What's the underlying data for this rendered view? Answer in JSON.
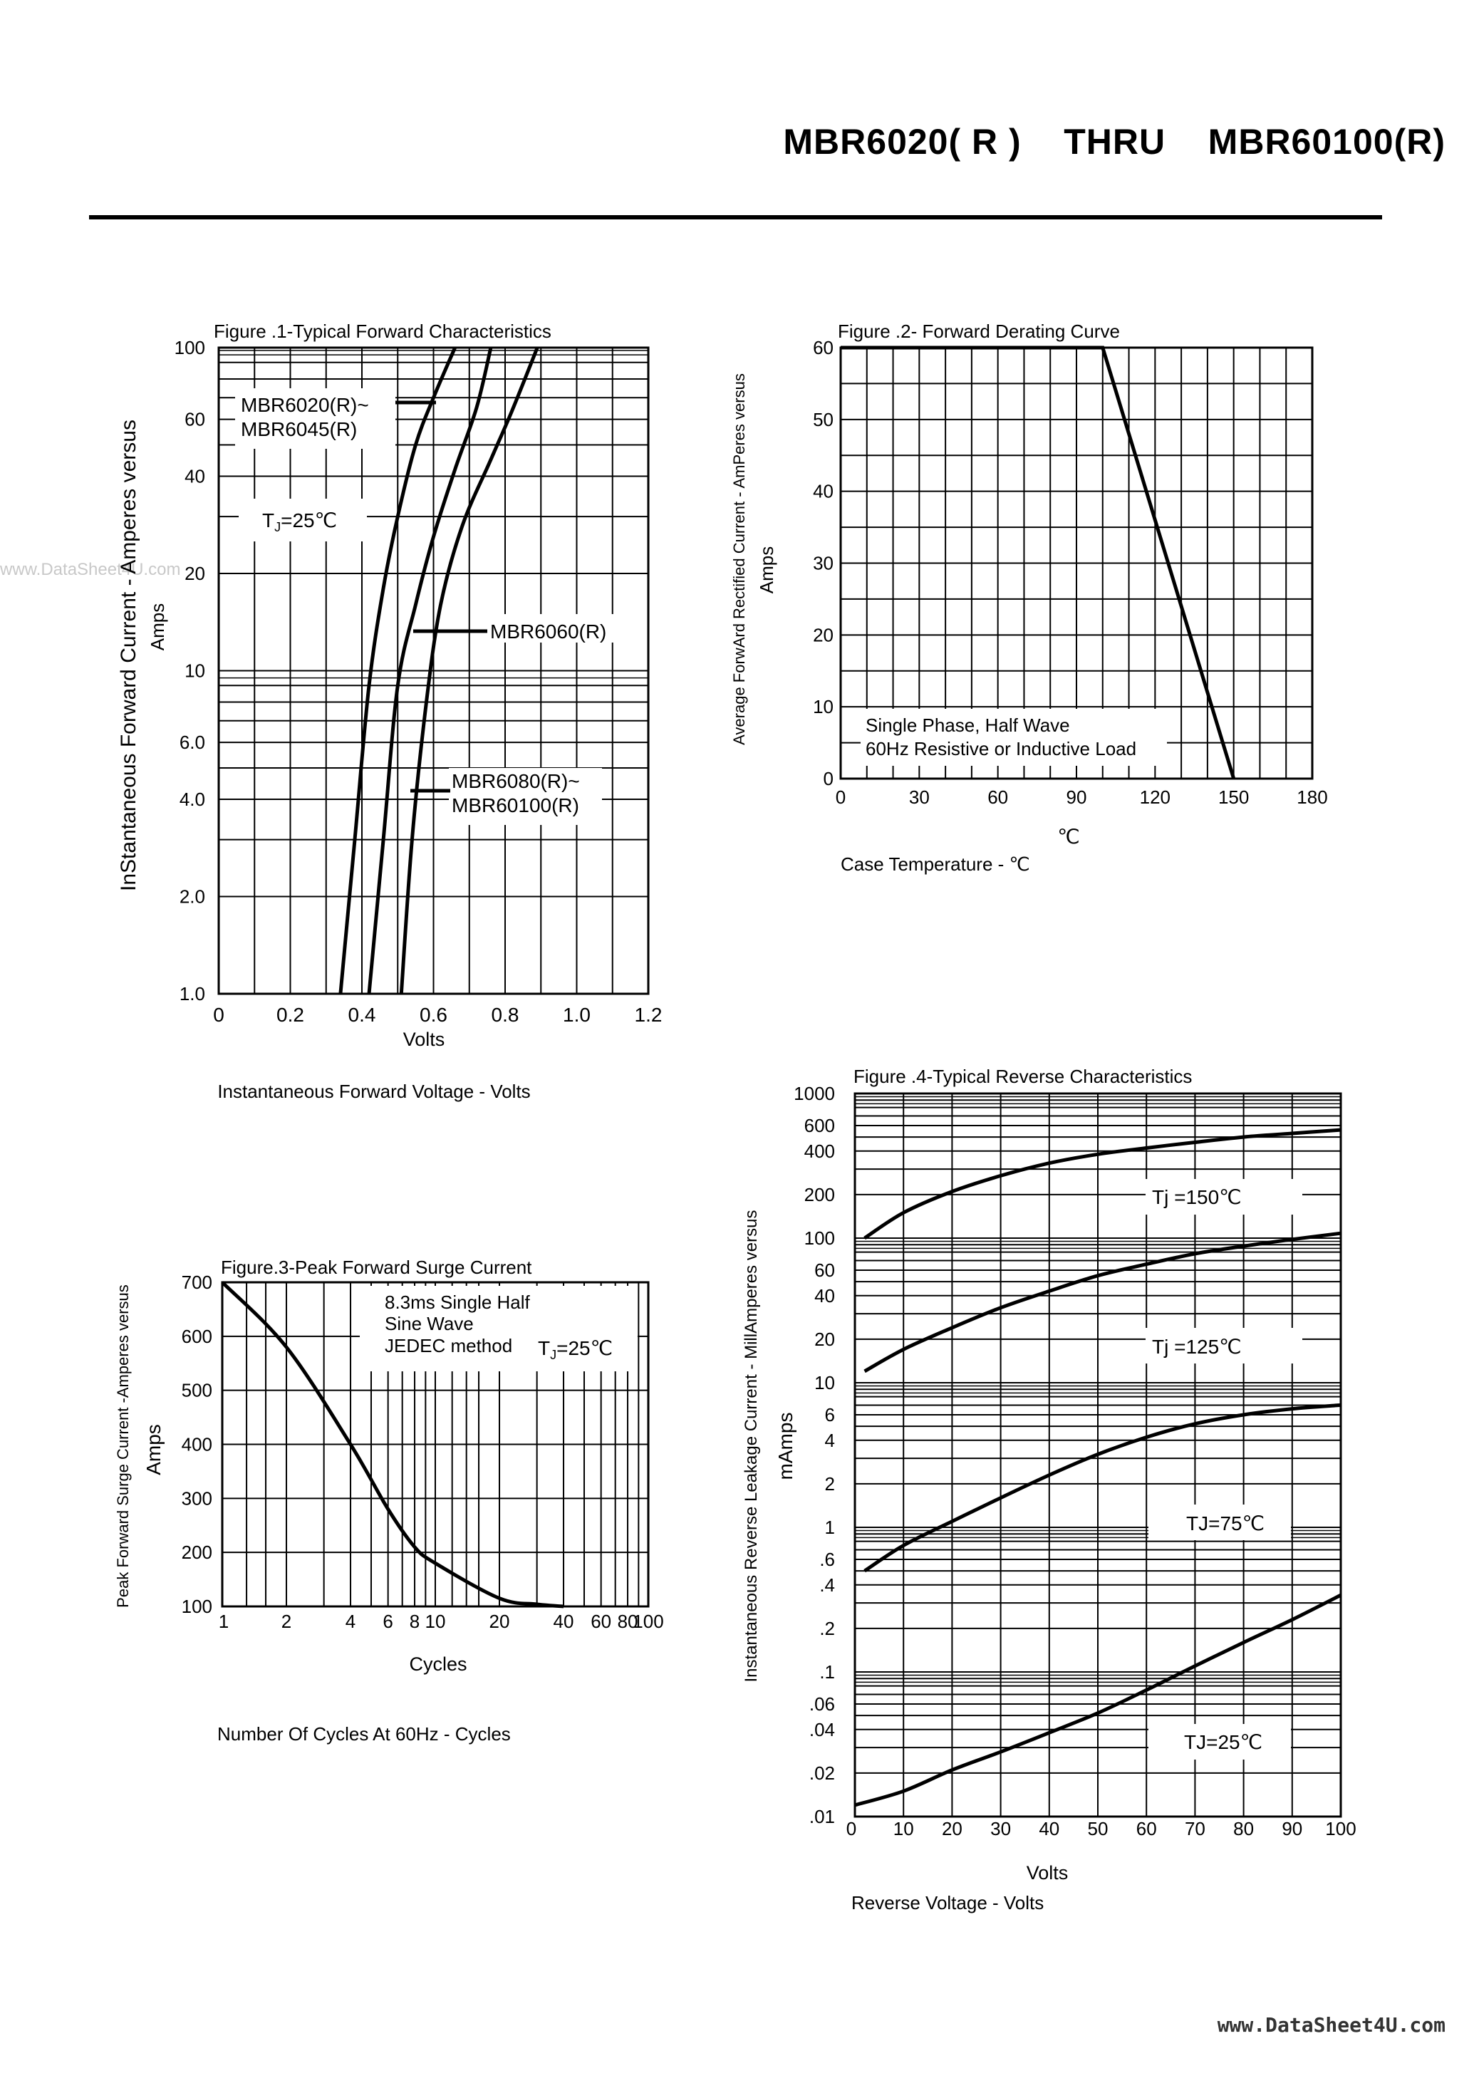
{
  "header": {
    "title": "MBR6020( R )    THRU    MBR60100(R)"
  },
  "watermark": {
    "left": "www.DataSheet4U.com",
    "bottom": "www.DataSheet4U.com"
  },
  "chart_data": [
    {
      "id": "fig1",
      "type": "line",
      "title": "Figure .1-Typical Forward Characteristics",
      "xlabel": "Volts",
      "xcaption": "Instantaneous Forward Voltage - Volts",
      "ylabel": "InStantaneous Forward Current - Amperes versus",
      "ylabel2": "Amps",
      "xscale": "linear",
      "yscale": "log",
      "xlim": [
        0,
        1.2
      ],
      "ylim": [
        1,
        100
      ],
      "xticks": [
        0,
        0.2,
        0.4,
        0.6,
        0.8,
        1.0,
        1.2
      ],
      "xtick_labels": [
        "0",
        "0.2",
        "0.4",
        "0.6",
        "0.8",
        "1.0",
        "1.2"
      ],
      "yticks": [
        1,
        2,
        4,
        6,
        10,
        20,
        40,
        60,
        100
      ],
      "ytick_labels": [
        "1.0",
        "2.0",
        "4.0",
        "6.0",
        "10",
        "20",
        "40",
        "60",
        "100"
      ],
      "annotation": "T<sub>J</sub>=25℃",
      "annotation_text": "TJ=25℃",
      "series": [
        {
          "name": "MBR6020(R)~ MBR6045(R)",
          "label_lines": [
            "MBR6020(R)~",
            "MBR6045(R)"
          ],
          "x": [
            0.34,
            0.38,
            0.42,
            0.46,
            0.5,
            0.55,
            0.6,
            0.66
          ],
          "y": [
            1,
            3,
            9,
            18,
            30,
            50,
            70,
            100
          ]
        },
        {
          "name": "MBR6060(R)",
          "label_lines": [
            "MBR6060(R)"
          ],
          "x": [
            0.42,
            0.46,
            0.5,
            0.55,
            0.6,
            0.66,
            0.72,
            0.76
          ],
          "y": [
            1,
            3,
            9,
            16,
            26,
            42,
            65,
            100
          ]
        },
        {
          "name": "MBR6080(R)~ MBR60100(R)",
          "label_lines": [
            "MBR6080(R)~",
            "MBR60100(R)"
          ],
          "x": [
            0.51,
            0.54,
            0.58,
            0.62,
            0.68,
            0.76,
            0.82,
            0.89
          ],
          "y": [
            1,
            3,
            8,
            16,
            28,
            45,
            64,
            100
          ]
        }
      ]
    },
    {
      "id": "fig2",
      "type": "line",
      "title": "Figure .2- Forward Derating Curve",
      "xlabel": "℃",
      "xcaption": "Case Temperature  -  ℃",
      "ylabel": "Average ForwArd Rectified Current  -  AmPeres versus",
      "ylabel2": "Amps",
      "xlim": [
        0,
        180
      ],
      "ylim": [
        0,
        60
      ],
      "xticks": [
        0,
        30,
        60,
        90,
        120,
        150,
        180
      ],
      "xtick_labels": [
        "0",
        "30",
        "60",
        "90",
        "120",
        "150",
        "180"
      ],
      "yticks": [
        0,
        10,
        20,
        30,
        40,
        50,
        60
      ],
      "ytick_labels": [
        "0",
        "10",
        "20",
        "30",
        "40",
        "50",
        "60"
      ],
      "annotation_lines": [
        "Single Phase, Half Wave",
        "60Hz Resistive or Inductive Load"
      ],
      "series": [
        {
          "name": "Derating",
          "x": [
            0,
            100,
            150
          ],
          "y": [
            60,
            60,
            0
          ]
        }
      ]
    },
    {
      "id": "fig3",
      "type": "line",
      "title": "Figure.3-Peak Forward Surge Current",
      "xlabel": "Cycles",
      "xcaption": "Number Of Cycles At 60Hz - Cycles",
      "ylabel": "Peak Forward Surge Current -Amperes versus",
      "ylabel2": "Amps",
      "xscale": "log",
      "xlim": [
        1,
        100
      ],
      "ylim": [
        100,
        700
      ],
      "xticks": [
        1,
        2,
        4,
        6,
        8,
        10,
        20,
        40,
        60,
        80,
        100
      ],
      "xtick_labels": [
        "1",
        "2",
        "4",
        "6",
        "8",
        "10",
        "20",
        "40",
        "60",
        "80",
        "100"
      ],
      "yticks": [
        100,
        200,
        300,
        400,
        500,
        600,
        700
      ],
      "ytick_labels": [
        "100",
        "200",
        "300",
        "400",
        "500",
        "600",
        "700"
      ],
      "annotation_lines": [
        "8.3ms Single Half",
        "Sine Wave",
        "JEDEC method"
      ],
      "annotation": "T<sub>J</sub>=25℃",
      "annotation_text": "TJ=25℃",
      "series": [
        {
          "name": "Surge",
          "x": [
            1,
            2,
            4,
            6,
            8,
            10,
            20,
            30,
            40
          ],
          "y": [
            700,
            580,
            400,
            280,
            210,
            180,
            115,
            104,
            100
          ]
        }
      ]
    },
    {
      "id": "fig4",
      "type": "line",
      "title": "Figure .4-Typical Reverse Characteristics",
      "xlabel": "Volts",
      "xcaption": "Reverse Voltage - Volts",
      "ylabel": "Instantaneous Reverse Leakage Current -  MillAmperes versus",
      "ylabel2": "mAmps",
      "yscale": "log",
      "xlim": [
        0,
        100
      ],
      "ylim": [
        0.01,
        1000
      ],
      "xticks": [
        0,
        10,
        20,
        30,
        40,
        50,
        60,
        70,
        80,
        90,
        100
      ],
      "xtick_labels": [
        "0",
        "10",
        "20",
        "30",
        "40",
        "50",
        "60",
        "70",
        "80",
        "90",
        "100"
      ],
      "yticks": [
        0.01,
        0.02,
        0.04,
        0.06,
        0.1,
        0.2,
        0.4,
        0.6,
        1,
        2,
        4,
        6,
        10,
        20,
        40,
        60,
        100,
        200,
        400,
        600,
        1000
      ],
      "ytick_labels": [
        ".01",
        ".02",
        ".04",
        ".06",
        ".1",
        ".2",
        ".4",
        ".6",
        "1",
        "2",
        "4",
        "6",
        "10",
        "20",
        "40",
        "60",
        "100",
        "200",
        "400",
        "600",
        "1000"
      ],
      "series": [
        {
          "name": "Tj=150℃",
          "label": "Tj =150℃",
          "x": [
            2,
            10,
            20,
            30,
            40,
            50,
            60,
            70,
            80,
            90,
            100
          ],
          "y": [
            100,
            150,
            210,
            270,
            330,
            380,
            420,
            460,
            500,
            530,
            560
          ]
        },
        {
          "name": "Tj=125℃",
          "label": "Tj =125℃",
          "x": [
            2,
            10,
            20,
            30,
            40,
            50,
            60,
            70,
            80,
            90,
            100
          ],
          "y": [
            12,
            17,
            24,
            33,
            43,
            55,
            66,
            78,
            88,
            98,
            108
          ]
        },
        {
          "name": "TJ=75℃",
          "label": "TJ=75℃",
          "x": [
            2,
            10,
            20,
            30,
            40,
            50,
            60,
            70,
            80,
            90,
            100
          ],
          "y": [
            0.5,
            0.75,
            1.1,
            1.6,
            2.3,
            3.2,
            4.2,
            5.2,
            6.0,
            6.6,
            7.0
          ]
        },
        {
          "name": "TJ=25℃",
          "label": "TJ=25℃",
          "x": [
            0,
            10,
            20,
            30,
            40,
            50,
            60,
            70,
            80,
            90,
            100
          ],
          "y": [
            0.012,
            0.015,
            0.021,
            0.028,
            0.038,
            0.052,
            0.075,
            0.11,
            0.16,
            0.23,
            0.34
          ]
        }
      ]
    }
  ]
}
